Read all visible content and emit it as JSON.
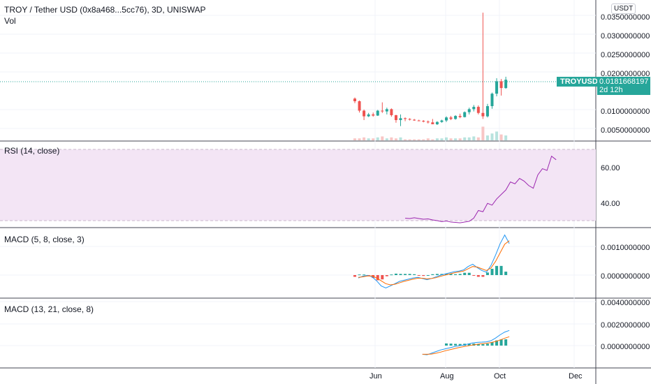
{
  "header": {
    "symbol_title": "TROY / Tether USD (0x8a468...5cc76), 3D, UNISWAP",
    "vol_label": "Vol",
    "currency_badge": "USDT"
  },
  "price_pane": {
    "y_ticks": [
      "0.0350000000",
      "0.0300000000",
      "0.0250000000",
      "0.0200000000",
      "0.0100000000",
      "0.0050000000"
    ],
    "symbol_tag": "TROYUSDT",
    "last_price": "0.0181668197",
    "countdown": "2d 12h"
  },
  "rsi_pane": {
    "label": "RSI (14, close)",
    "y_ticks": [
      "60.00",
      "40.00"
    ]
  },
  "macd1_pane": {
    "label": "MACD (5, 8, close, 3)",
    "y_ticks": [
      "0.0010000000",
      "0.0000000000"
    ]
  },
  "macd2_pane": {
    "label": "MACD (13, 21, close, 8)",
    "y_ticks": [
      "0.0040000000",
      "0.0020000000",
      "0.0000000000"
    ]
  },
  "time_axis": {
    "labels": [
      "Jun",
      "Aug",
      "Oct",
      "Dec"
    ]
  },
  "colors": {
    "up": "#26a69a",
    "down": "#ef5350",
    "rsi_line": "#9c27b0",
    "rsi_band": "#f3e5f5",
    "macd_line": "#2196f3",
    "signal_line": "#ff6d00"
  },
  "chart_data": [
    {
      "type": "candlestick",
      "title": "TROY / Tether USD (0x8a468...5cc76), 3D, UNISWAP",
      "candles": [
        {
          "o": 0.0132,
          "h": 0.0135,
          "l": 0.012,
          "c": 0.0125
        },
        {
          "o": 0.0125,
          "h": 0.0127,
          "l": 0.0095,
          "c": 0.01
        },
        {
          "o": 0.01,
          "h": 0.0103,
          "l": 0.0075,
          "c": 0.0085
        },
        {
          "o": 0.0085,
          "h": 0.0094,
          "l": 0.0083,
          "c": 0.009
        },
        {
          "o": 0.009,
          "h": 0.0095,
          "l": 0.0084,
          "c": 0.0087
        },
        {
          "o": 0.0087,
          "h": 0.0102,
          "l": 0.0086,
          "c": 0.01
        },
        {
          "o": 0.01,
          "h": 0.0122,
          "l": 0.0094,
          "c": 0.0098
        },
        {
          "o": 0.0098,
          "h": 0.0108,
          "l": 0.009,
          "c": 0.0104
        },
        {
          "o": 0.0104,
          "h": 0.0106,
          "l": 0.0084,
          "c": 0.0088
        },
        {
          "o": 0.0088,
          "h": 0.0089,
          "l": 0.0068,
          "c": 0.0075
        },
        {
          "o": 0.0075,
          "h": 0.009,
          "l": 0.0059,
          "c": 0.008
        },
        {
          "o": 0.008,
          "h": 0.0082,
          "l": 0.0072,
          "c": 0.0078
        },
        {
          "o": 0.0078,
          "h": 0.008,
          "l": 0.0074,
          "c": 0.0076
        },
        {
          "o": 0.0076,
          "h": 0.0078,
          "l": 0.0073,
          "c": 0.0074
        },
        {
          "o": 0.0074,
          "h": 0.0076,
          "l": 0.0072,
          "c": 0.0073
        },
        {
          "o": 0.0073,
          "h": 0.0075,
          "l": 0.0069,
          "c": 0.0071
        },
        {
          "o": 0.0071,
          "h": 0.0074,
          "l": 0.0066,
          "c": 0.0069
        },
        {
          "o": 0.0069,
          "h": 0.0078,
          "l": 0.0064,
          "c": 0.0064
        },
        {
          "o": 0.0064,
          "h": 0.0072,
          "l": 0.0062,
          "c": 0.007
        },
        {
          "o": 0.007,
          "h": 0.0076,
          "l": 0.0068,
          "c": 0.0074
        },
        {
          "o": 0.0074,
          "h": 0.0085,
          "l": 0.007,
          "c": 0.0082
        },
        {
          "o": 0.0082,
          "h": 0.0086,
          "l": 0.0075,
          "c": 0.0078
        },
        {
          "o": 0.0078,
          "h": 0.0088,
          "l": 0.0076,
          "c": 0.0086
        },
        {
          "o": 0.0086,
          "h": 0.0092,
          "l": 0.008,
          "c": 0.0083
        },
        {
          "o": 0.0083,
          "h": 0.0098,
          "l": 0.0082,
          "c": 0.0096
        },
        {
          "o": 0.0096,
          "h": 0.0108,
          "l": 0.009,
          "c": 0.0104
        },
        {
          "o": 0.0104,
          "h": 0.0115,
          "l": 0.0098,
          "c": 0.011
        },
        {
          "o": 0.011,
          "h": 0.0114,
          "l": 0.009,
          "c": 0.0094
        },
        {
          "o": 0.0094,
          "h": 0.036,
          "l": 0.0078,
          "c": 0.0085
        },
        {
          "o": 0.0085,
          "h": 0.0118,
          "l": 0.0082,
          "c": 0.0112
        },
        {
          "o": 0.0112,
          "h": 0.0148,
          "l": 0.0105,
          "c": 0.0145
        },
        {
          "o": 0.0145,
          "h": 0.0186,
          "l": 0.0138,
          "c": 0.0178
        },
        {
          "o": 0.0178,
          "h": 0.0184,
          "l": 0.014,
          "c": 0.016
        },
        {
          "o": 0.016,
          "h": 0.019,
          "l": 0.0158,
          "c": 0.0182
        }
      ]
    },
    {
      "type": "bar",
      "title": "Vol",
      "values": [
        2,
        2,
        3,
        2,
        2,
        3,
        4,
        2,
        3,
        2,
        3,
        1,
        1,
        1,
        1,
        1,
        2,
        1,
        2,
        2,
        3,
        2,
        2,
        2,
        3,
        3,
        4,
        3,
        14,
        5,
        7,
        9,
        6,
        5
      ]
    },
    {
      "type": "line",
      "title": "RSI (14, close)",
      "ylim": [
        28,
        72
      ],
      "series": [
        {
          "values": [
            31.2,
            31.0,
            31.4,
            31.0,
            30.6,
            30.8,
            30.2,
            29.8,
            29.2,
            29.6,
            29.0,
            28.8,
            28.6,
            29.0,
            29.4,
            31.2,
            35.5,
            34.8,
            39.5,
            38.5,
            42.0,
            44.5,
            47.0,
            51.5,
            50.5,
            53.5,
            52.0,
            49.5,
            48.0,
            55.5,
            59.0,
            58.0,
            66.0,
            64.0
          ]
        }
      ]
    },
    {
      "type": "bar",
      "title": "MACD (5, 8, close, 3)",
      "ylim": [
        -0.0006,
        0.0014
      ],
      "series": [
        {
          "values": [
            -0.0001,
            -4e-05,
            -1e-05,
            -6e-05,
            -0.0002,
            -0.00038,
            -0.00045,
            -0.00038,
            -0.0003,
            -0.00022,
            -0.00018,
            -0.00014,
            -0.0001,
            -8e-05,
            -0.00012,
            -0.00016,
            -0.00012,
            -6e-05,
            0.0,
            4e-05,
            8e-05,
            0.00012,
            0.00014,
            0.00018,
            0.0003,
            0.00038,
            0.00026,
            0.00016,
            0.0001,
            0.00034,
            0.0007,
            0.0011,
            0.0014,
            0.0011
          ]
        },
        {
          "values": [
            -8e-05,
            -6e-05,
            -3e-05,
            -3e-05,
            -0.0001,
            -0.0002,
            -0.0003,
            -0.00034,
            -0.00032,
            -0.00027,
            -0.00022,
            -0.00018,
            -0.00014,
            -0.00011,
            -0.00011,
            -0.00013,
            -0.00012,
            -9e-05,
            -4e-05,
            0.0,
            4e-05,
            8e-05,
            0.00011,
            0.00014,
            0.00022,
            0.0003,
            0.00028,
            0.00022,
            0.00016,
            0.00025,
            0.00048,
            0.00078,
            0.00108,
            0.0012
          ]
        },
        {
          "values": [
            -6e-05,
            2e-05,
            2e-05,
            -4e-05,
            -0.0001,
            -0.00018,
            -0.00015,
            -4e-05,
            2e-05,
            5e-05,
            4e-05,
            4e-05,
            4e-05,
            3e-05,
            -1e-05,
            -3e-05,
            0.0,
            3e-05,
            4e-05,
            4e-05,
            4e-05,
            4e-05,
            3e-05,
            4e-05,
            8e-05,
            8e-05,
            -2e-05,
            -6e-05,
            -6e-05,
            9e-05,
            0.00022,
            0.00032,
            0.00032,
            0.00012
          ]
        }
      ]
    },
    {
      "type": "bar",
      "title": "MACD (13, 21, close, 8)",
      "ylim": [
        -0.0006,
        0.0044
      ],
      "series": [
        {
          "values": [
            null,
            null,
            null,
            null,
            null,
            null,
            null,
            null,
            null,
            null,
            null,
            null,
            null,
            null,
            -0.0008,
            -0.00085,
            -0.0007,
            -0.00055,
            -0.0004,
            -0.0003,
            -0.0002,
            -0.0001,
            -2e-05,
            5e-05,
            0.00015,
            0.00025,
            0.0003,
            0.00032,
            0.00035,
            0.00045,
            0.0007,
            0.001,
            0.00125,
            0.0014
          ]
        },
        {
          "values": [
            null,
            null,
            null,
            null,
            null,
            null,
            null,
            null,
            null,
            null,
            null,
            null,
            null,
            null,
            -0.0008,
            -0.0008,
            -0.00078,
            -0.0007,
            -0.0006,
            -0.00048,
            -0.00038,
            -0.00028,
            -0.00018,
            -0.0001,
            -2e-05,
            6e-05,
            0.00012,
            0.00018,
            0.00022,
            0.00028,
            0.00038,
            0.00052,
            0.00068,
            0.00082
          ]
        },
        {
          "values": [
            null,
            null,
            null,
            null,
            null,
            null,
            null,
            null,
            null,
            null,
            null,
            null,
            null,
            null,
            null,
            null,
            null,
            null,
            null,
            null,
            0.0002,
            0.00018,
            0.00016,
            0.00015,
            0.00017,
            0.00019,
            0.00018,
            0.00014,
            0.00013,
            0.00017,
            0.00032,
            0.00048,
            0.00057,
            0.00058
          ]
        }
      ]
    }
  ]
}
